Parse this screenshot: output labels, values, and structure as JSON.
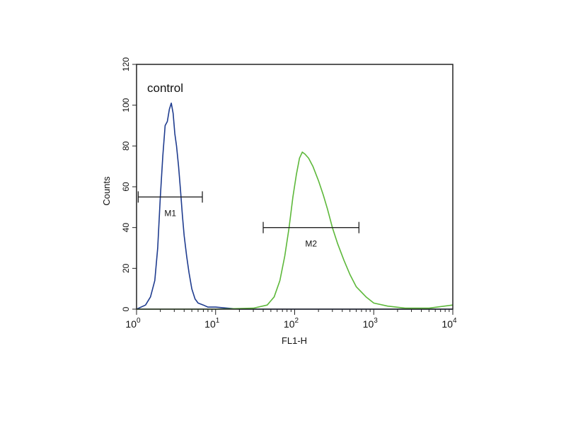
{
  "chart_data": {
    "type": "line",
    "x_scale": "log",
    "xlim": [
      1,
      10000
    ],
    "ylim": [
      0,
      120
    ],
    "xlabel": "FL1-H",
    "ylabel": "Counts",
    "x_ticks": [
      {
        "value": 1,
        "base": "10",
        "exp": "0"
      },
      {
        "value": 10,
        "base": "10",
        "exp": "1"
      },
      {
        "value": 100,
        "base": "10",
        "exp": "2"
      },
      {
        "value": 1000,
        "base": "10",
        "exp": "3"
      },
      {
        "value": 10000,
        "base": "10",
        "exp": "4"
      }
    ],
    "y_ticks": [
      0,
      20,
      40,
      60,
      80,
      100,
      120
    ],
    "grid": false,
    "annotations": [
      {
        "text": "control"
      }
    ],
    "series": [
      {
        "name": "control",
        "color": "#1f3c8f",
        "x": [
          1.0,
          1.3,
          1.5,
          1.7,
          1.85,
          2.0,
          2.15,
          2.3,
          2.45,
          2.6,
          2.75,
          2.9,
          3.05,
          3.2,
          3.4,
          3.6,
          3.8,
          4.0,
          4.3,
          4.6,
          5.0,
          5.5,
          6.0,
          7.0,
          8.0,
          10.0,
          14.0,
          20.0,
          50.0,
          100.0,
          1000.0,
          10000.0
        ],
        "y": [
          0,
          2,
          6,
          14,
          30,
          55,
          75,
          90,
          92,
          98,
          101,
          96,
          86,
          80,
          70,
          58,
          46,
          36,
          26,
          18,
          10,
          5,
          3,
          2,
          1,
          1,
          0.5,
          0,
          0,
          0,
          0,
          0
        ]
      },
      {
        "name": "",
        "color": "#5db83a",
        "x": [
          1.0,
          10.0,
          30.0,
          45.0,
          55.0,
          65.0,
          75.0,
          85.0,
          95.0,
          105.0,
          115.0,
          125.0,
          135.0,
          150.0,
          170.0,
          200.0,
          230.0,
          260.0,
          300.0,
          350.0,
          420.0,
          500.0,
          600.0,
          800.0,
          1000.0,
          1500.0,
          2500.0,
          5000.0,
          10000.0
        ],
        "y": [
          0,
          0,
          0.5,
          2,
          6,
          14,
          26,
          40,
          55,
          66,
          74,
          77,
          76,
          74,
          70,
          63,
          56,
          49,
          40,
          32,
          24,
          17,
          11,
          6,
          3,
          1.5,
          0.5,
          0.5,
          2
        ]
      }
    ],
    "markers": [
      {
        "label": "M1",
        "x_start": 1.05,
        "x_end": 6.8,
        "y": 55
      },
      {
        "label": "M2",
        "x_start": 40,
        "x_end": 650,
        "y": 40
      }
    ]
  }
}
